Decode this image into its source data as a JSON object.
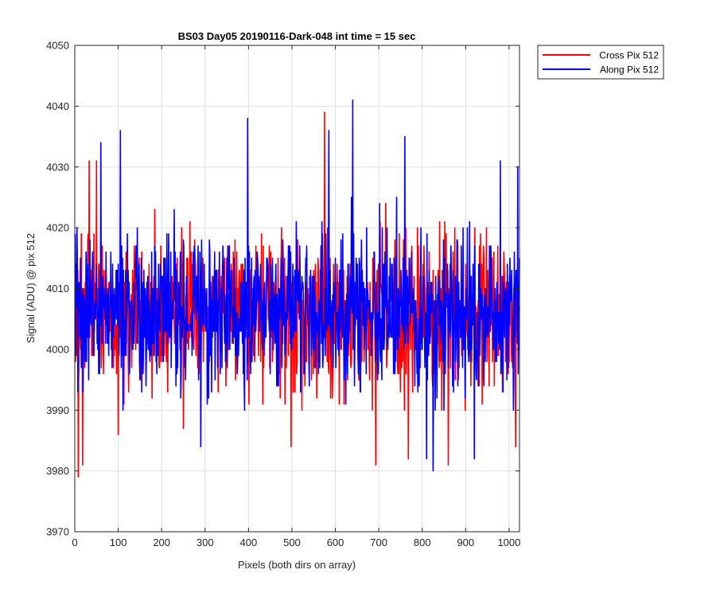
{
  "chart_data": {
    "type": "line",
    "title": "BS03 Day05 20190116-Dark-048 int time = 15 sec",
    "xlabel": "Pixels (both dirs on array)",
    "ylabel": "Signal (ADU) @ pix 512",
    "xlim": [
      0,
      1024
    ],
    "ylim": [
      3970,
      4050
    ],
    "xticks": [
      0,
      100,
      200,
      300,
      400,
      500,
      600,
      700,
      800,
      900,
      1000
    ],
    "yticks": [
      3970,
      3980,
      3990,
      4000,
      4010,
      4020,
      4030,
      4040,
      4050
    ],
    "grid": true,
    "legend_position": "outside-top-right",
    "x_range": [
      1,
      1024
    ],
    "series": [
      {
        "name": "Cross Pix 512",
        "color": "#ff0000",
        "mean": 4006,
        "spread": 6,
        "notable_points": [
          [
            8,
            3979
          ],
          [
            18,
            3981
          ],
          [
            33,
            4031
          ],
          [
            50,
            4031
          ],
          [
            100,
            3986
          ],
          [
            250,
            3987
          ],
          [
            498,
            3984
          ],
          [
            575,
            4039
          ],
          [
            693,
            3981
          ],
          [
            768,
            3982
          ],
          [
            860,
            3981
          ],
          [
            1015,
            3984
          ]
        ]
      },
      {
        "name": "Along Pix 512",
        "color": "#0000ff",
        "mean": 4006,
        "spread": 6,
        "notable_points": [
          [
            5,
            4020
          ],
          [
            60,
            4034
          ],
          [
            105,
            4036
          ],
          [
            290,
            3984
          ],
          [
            398,
            4038
          ],
          [
            585,
            4036
          ],
          [
            640,
            4041
          ],
          [
            760,
            4035
          ],
          [
            810,
            3982
          ],
          [
            825,
            3980
          ],
          [
            920,
            3982
          ],
          [
            980,
            4031
          ],
          [
            1020,
            4030
          ]
        ]
      }
    ]
  }
}
